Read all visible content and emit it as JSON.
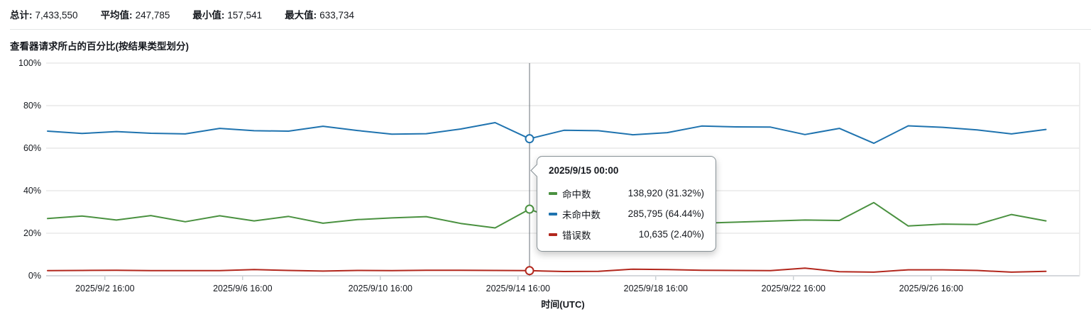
{
  "stats": {
    "items": [
      {
        "label": "总计:",
        "value": "7,433,550"
      },
      {
        "label": "平均值:",
        "value": "247,785"
      },
      {
        "label": "最小值:",
        "value": "157,541"
      },
      {
        "label": "最大值:",
        "value": "633,734"
      }
    ]
  },
  "chart_title": "查看器请求所占的百分比(按结果类型划分)",
  "chart_data": {
    "type": "line",
    "title": "查看器请求所占的百分比(按结果类型划分)",
    "xlabel": "时间(UTC)",
    "ylabel": "",
    "ylim": [
      0,
      100
    ],
    "grid": "horizontal",
    "x_dates": [
      "2025/9/1 00:00",
      "2025/9/2 00:00",
      "2025/9/3 00:00",
      "2025/9/4 00:00",
      "2025/9/5 00:00",
      "2025/9/6 00:00",
      "2025/9/7 00:00",
      "2025/9/8 00:00",
      "2025/9/9 00:00",
      "2025/9/10 00:00",
      "2025/9/11 00:00",
      "2025/9/12 00:00",
      "2025/9/13 00:00",
      "2025/9/14 00:00",
      "2025/9/15 00:00",
      "2025/9/16 00:00",
      "2025/9/17 00:00",
      "2025/9/18 00:00",
      "2025/9/19 00:00",
      "2025/9/20 00:00",
      "2025/9/21 00:00",
      "2025/9/22 00:00",
      "2025/9/23 00:00",
      "2025/9/24 00:00",
      "2025/9/25 00:00",
      "2025/9/26 00:00",
      "2025/9/27 00:00",
      "2025/9/28 00:00",
      "2025/9/29 00:00",
      "2025/9/30 00:00"
    ],
    "series": [
      {
        "name": "命中数",
        "color": "#4a9140",
        "values": [
          26.9,
          28.1,
          26.2,
          28.3,
          25.4,
          28.2,
          25.8,
          27.9,
          24.7,
          26.4,
          27.2,
          27.8,
          24.6,
          22.5,
          31.32,
          25.0,
          25.3,
          24.6,
          24.9,
          24.7,
          25.2,
          25.7,
          26.2,
          26.0,
          34.4,
          23.4,
          24.3,
          24.1,
          28.8,
          25.8
        ]
      },
      {
        "name": "未命中数",
        "color": "#1f73af",
        "values": [
          68.0,
          66.9,
          67.8,
          67.0,
          66.7,
          69.3,
          68.2,
          68.0,
          70.3,
          68.3,
          66.6,
          66.8,
          69.0,
          72.0,
          64.44,
          68.4,
          68.2,
          66.3,
          67.3,
          70.4,
          70.0,
          69.9,
          66.4,
          69.3,
          62.3,
          70.5,
          69.8,
          68.6,
          66.7,
          68.8
        ]
      },
      {
        "name": "错误数",
        "color": "#b2271d",
        "values": [
          2.4,
          2.5,
          2.6,
          2.4,
          2.4,
          2.4,
          2.9,
          2.5,
          2.2,
          2.5,
          2.4,
          2.6,
          2.6,
          2.5,
          2.4,
          2.0,
          2.1,
          3.1,
          2.9,
          2.6,
          2.5,
          2.4,
          3.6,
          1.9,
          1.7,
          2.8,
          2.8,
          2.5,
          1.7,
          2.1
        ]
      }
    ],
    "yticks": [
      {
        "v": 0,
        "label": "0%"
      },
      {
        "v": 20,
        "label": "20%"
      },
      {
        "v": 40,
        "label": "40%"
      },
      {
        "v": 60,
        "label": "60%"
      },
      {
        "v": 80,
        "label": "80%"
      },
      {
        "v": 100,
        "label": "100%"
      }
    ],
    "xticks": [
      {
        "t": 1.6667,
        "label": "2025/9/2 16:00"
      },
      {
        "t": 5.6667,
        "label": "2025/9/6 16:00"
      },
      {
        "t": 9.6667,
        "label": "2025/9/10 16:00"
      },
      {
        "t": 13.6667,
        "label": "2025/9/14 16:00"
      },
      {
        "t": 17.6667,
        "label": "2025/9/18 16:00"
      },
      {
        "t": 21.6667,
        "label": "2025/9/22 16:00"
      },
      {
        "t": 25.6667,
        "label": "2025/9/26 16:00"
      }
    ],
    "hover": {
      "index": 14,
      "date": "2025/9/15 00:00"
    }
  },
  "tooltip": {
    "title": "2025/9/15 00:00",
    "rows": [
      {
        "label": "命中数",
        "value": "138,920 (31.32%)",
        "color": "#4a9140"
      },
      {
        "label": "未命中数",
        "value": "285,795 (64.44%)",
        "color": "#1f73af"
      },
      {
        "label": "错误数",
        "value": "10,635 (2.40%)",
        "color": "#b2271d"
      }
    ]
  },
  "colors": {
    "grid": "#e9e9e9",
    "axis": "#d5d8dc",
    "tick": "#b0b8bf",
    "hover_line": "#687078",
    "text": "#16191f"
  }
}
